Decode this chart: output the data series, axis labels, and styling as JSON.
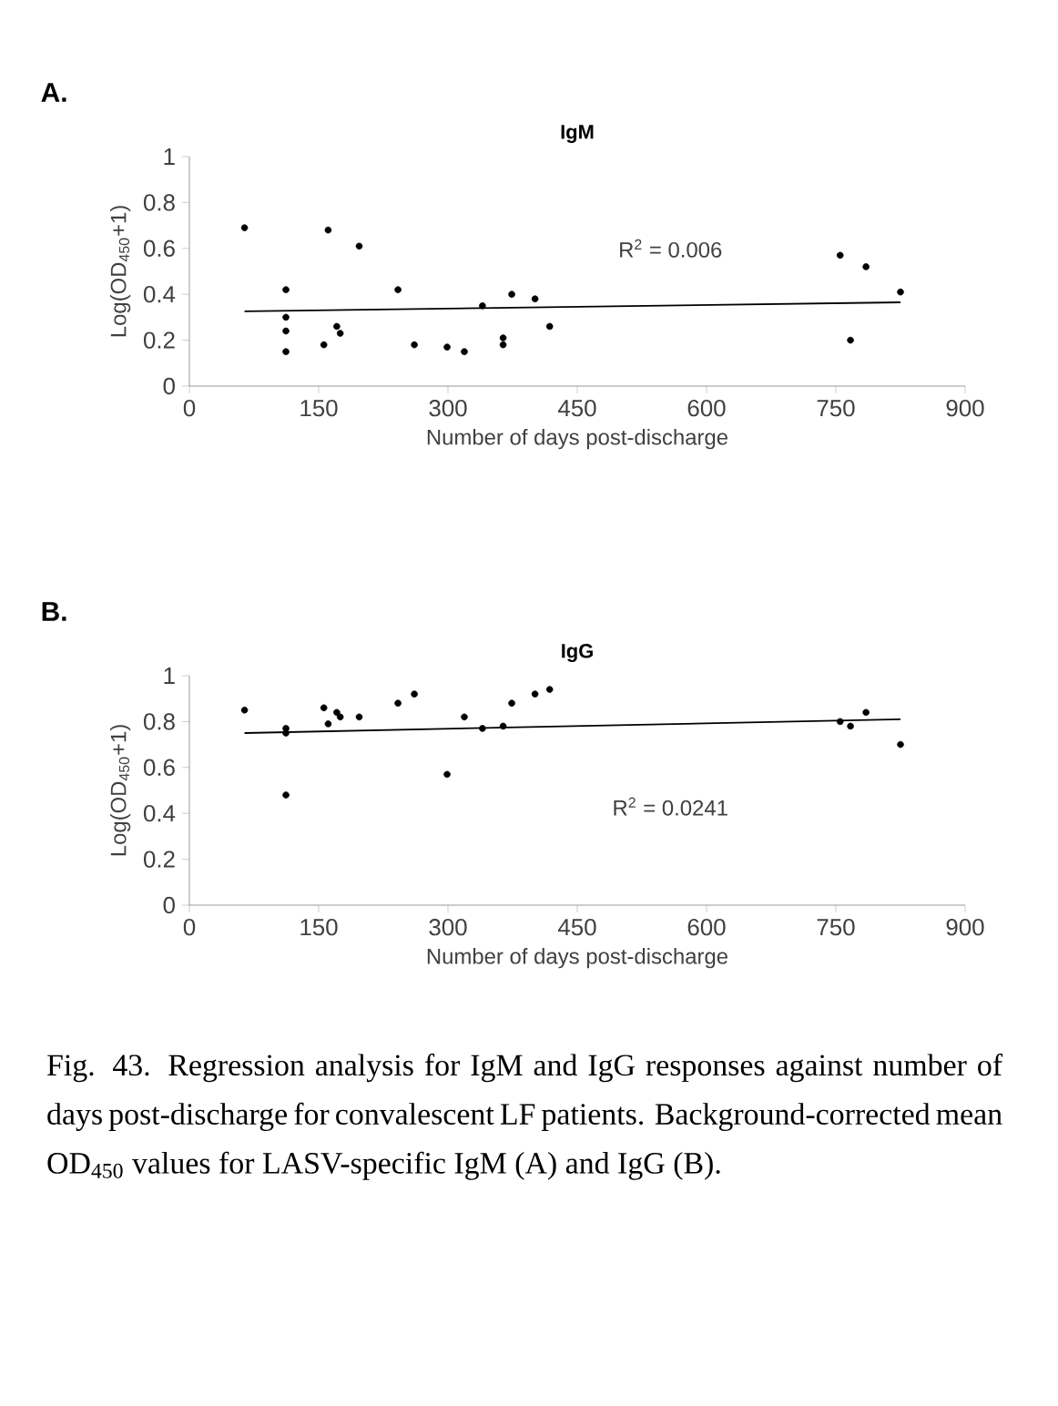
{
  "chart_data": [
    {
      "type": "scatter",
      "title": "A.",
      "subtitle": "IgM",
      "xlabel": "Number of days post-discharge",
      "ylabel": "Log(OD$_{450}$+1)",
      "xlim": [
        0,
        900
      ],
      "xticks": [
        0,
        150,
        300,
        450,
        600,
        750,
        900
      ],
      "ylim": [
        0,
        1
      ],
      "yticks": [
        0,
        0.2,
        0.4,
        0.6,
        0.8,
        1
      ],
      "annotations": [
        "R$^{2}$ = 0.006"
      ],
      "series": [
        {
          "marker": "circle",
          "color": "#000000",
          "x": [
            64,
            112,
            112,
            112,
            112,
            161,
            156,
            171,
            175,
            197,
            242,
            261,
            299,
            319,
            340,
            364,
            364,
            374,
            401,
            418,
            755,
            785,
            767,
            825
          ],
          "values": [
            0.69,
            0.42,
            0.3,
            0.24,
            0.15,
            0.68,
            0.18,
            0.26,
            0.23,
            0.61,
            0.42,
            0.18,
            0.17,
            0.15,
            0.35,
            0.21,
            0.18,
            0.4,
            0.38,
            0.26,
            0.57,
            0.52,
            0.2,
            0.41
          ]
        },
        {
          "type": "line",
          "marker": "none",
          "color": "#000000",
          "x": [
            64,
            825
          ],
          "values": [
            0.326,
            0.365
          ]
        }
      ]
    },
    {
      "type": "scatter",
      "title": "B.",
      "subtitle": "IgG",
      "xlabel": "Number of days post-discharge",
      "ylabel": "Log(OD$_{450}$+1)",
      "xlim": [
        0,
        900
      ],
      "xticks": [
        0,
        150,
        300,
        450,
        600,
        750,
        900
      ],
      "ylim": [
        0,
        1
      ],
      "yticks": [
        0,
        0.2,
        0.4,
        0.6,
        0.8,
        1
      ],
      "annotations": [
        "R$^{2}$ = 0.0241",
        "Fig. 43. Regression analysis for IgM and IgG responses against number of days post-discharge for convalescent LF patients. Background-corrected mean OD$_{450}$ values for LASV-specific IgM (A) and IgG (B)."
      ],
      "series": [
        {
          "marker": "circle",
          "color": "#000000",
          "x": [
            64,
            112,
            112,
            112,
            156,
            161,
            171,
            175,
            197,
            242,
            261,
            299,
            319,
            340,
            364,
            374,
            401,
            418,
            755,
            767,
            785,
            825
          ],
          "values": [
            0.85,
            0.77,
            0.75,
            0.48,
            0.86,
            0.79,
            0.84,
            0.82,
            0.82,
            0.88,
            0.92,
            0.57,
            0.82,
            0.77,
            0.78,
            0.88,
            0.92,
            0.94,
            0.8,
            0.78,
            0.84,
            0.7
          ]
        },
        {
          "type": "line",
          "marker": "none",
          "color": "#000000",
          "x": [
            64,
            825
          ],
          "values": [
            0.75,
            0.81
          ]
        }
      ]
    }
  ]
}
